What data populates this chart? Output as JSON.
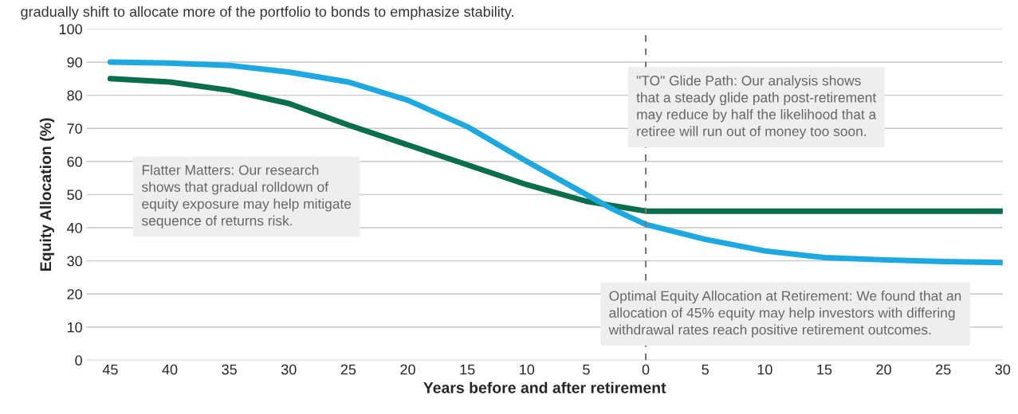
{
  "chart_data": {
    "type": "line",
    "subtitle": "gradually shift to allocate more of the portfolio to bonds to emphasize stability.",
    "xlabel": "Years before and after retirement",
    "ylabel": "Equity Allocation (%)",
    "series": [
      {
        "color": "#0a6e4a",
        "x": [
          -45,
          -40,
          -35,
          -30,
          -25,
          -20,
          -15,
          -10,
          -5,
          0,
          30
        ],
        "values": [
          85,
          84,
          81.5,
          77.5,
          71,
          65,
          59,
          53,
          48,
          45,
          45
        ]
      },
      {
        "color": "#1ea8e0",
        "x": [
          -45,
          -40,
          -35,
          -30,
          -25,
          -20,
          -15,
          -10,
          -5,
          -3,
          0,
          5,
          10,
          15,
          20,
          25,
          30
        ],
        "values": [
          90,
          89.7,
          89,
          87,
          84,
          78.5,
          70.5,
          60,
          50,
          46,
          41,
          36.5,
          33,
          31,
          30.3,
          29.8,
          29.5
        ]
      }
    ],
    "xlim": [
      -47,
      30
    ],
    "xticks": [
      {
        "value": -45,
        "label": "45"
      },
      {
        "value": -40,
        "label": "40"
      },
      {
        "value": -35,
        "label": "35"
      },
      {
        "value": -30,
        "label": "30"
      },
      {
        "value": -25,
        "label": "25"
      },
      {
        "value": -20,
        "label": "20"
      },
      {
        "value": -15,
        "label": "15"
      },
      {
        "value": -10,
        "label": "10"
      },
      {
        "value": -5,
        "label": "5"
      },
      0,
      5,
      10,
      15,
      20,
      25,
      30
    ],
    "ylim": [
      0,
      100
    ],
    "yticks": [
      0,
      10,
      20,
      30,
      40,
      50,
      60,
      70,
      80,
      90,
      100
    ],
    "grid": "y",
    "ref_lines": [
      {
        "axis": "x",
        "value": 0,
        "color": "#777777",
        "line_style": "dashed"
      }
    ],
    "annotations": [
      "Flatter Matters: Our research\nshows that gradual rolldown of\nequity exposure may help mitigate\nsequence of returns risk.",
      "\"TO\" Glide Path: Our analysis shows\nthat a steady glide path post-retirement\nmay reduce by half the likelihood that a\nretiree will run out of money too soon.",
      "Optimal Equity Allocation at Retirement: We found that an\nallocation of 45% equity may help investors with differing\nwithdrawal rates reach positive retirement outcomes."
    ]
  }
}
